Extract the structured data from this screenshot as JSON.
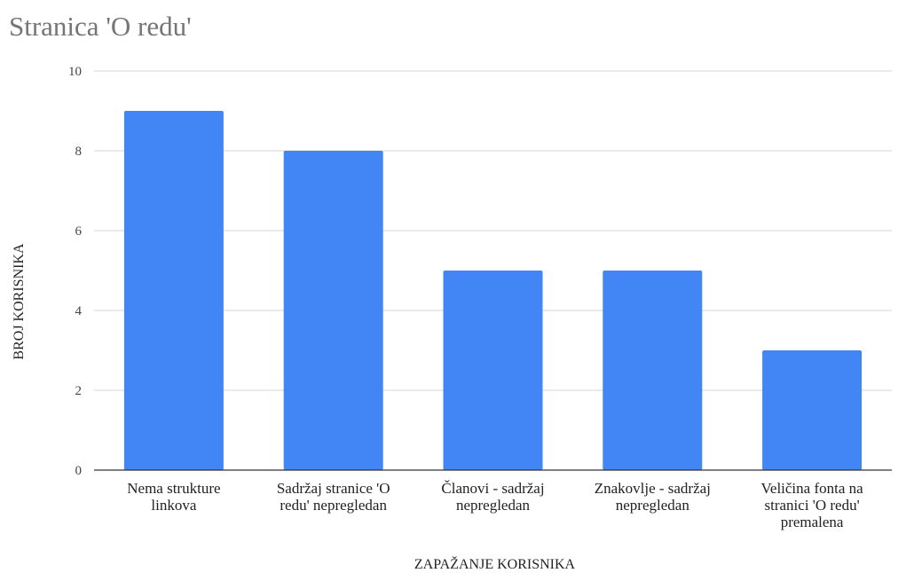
{
  "chart_data": {
    "type": "bar",
    "title": "Stranica 'O redu'",
    "xlabel": "ZAPAŽANJE KORISNIKA",
    "ylabel": "BROJ KORISNIKA",
    "ylim": [
      0,
      10
    ],
    "yticks": [
      0,
      2,
      4,
      6,
      8,
      10
    ],
    "grid": true,
    "legend": "none",
    "bar_color": "#4285f4",
    "categories": [
      [
        "Nema strukture",
        "linkova"
      ],
      [
        "Sadržaj stranice 'O",
        "redu' nepregledan"
      ],
      [
        "Članovi - sadržaj",
        "nepregledan"
      ],
      [
        "Znakovlje - sadržaj",
        "nepregledan"
      ],
      [
        "Veličina fonta na",
        "stranici 'O redu'",
        "premalena"
      ]
    ],
    "values": [
      9,
      8,
      5,
      5,
      3
    ]
  }
}
